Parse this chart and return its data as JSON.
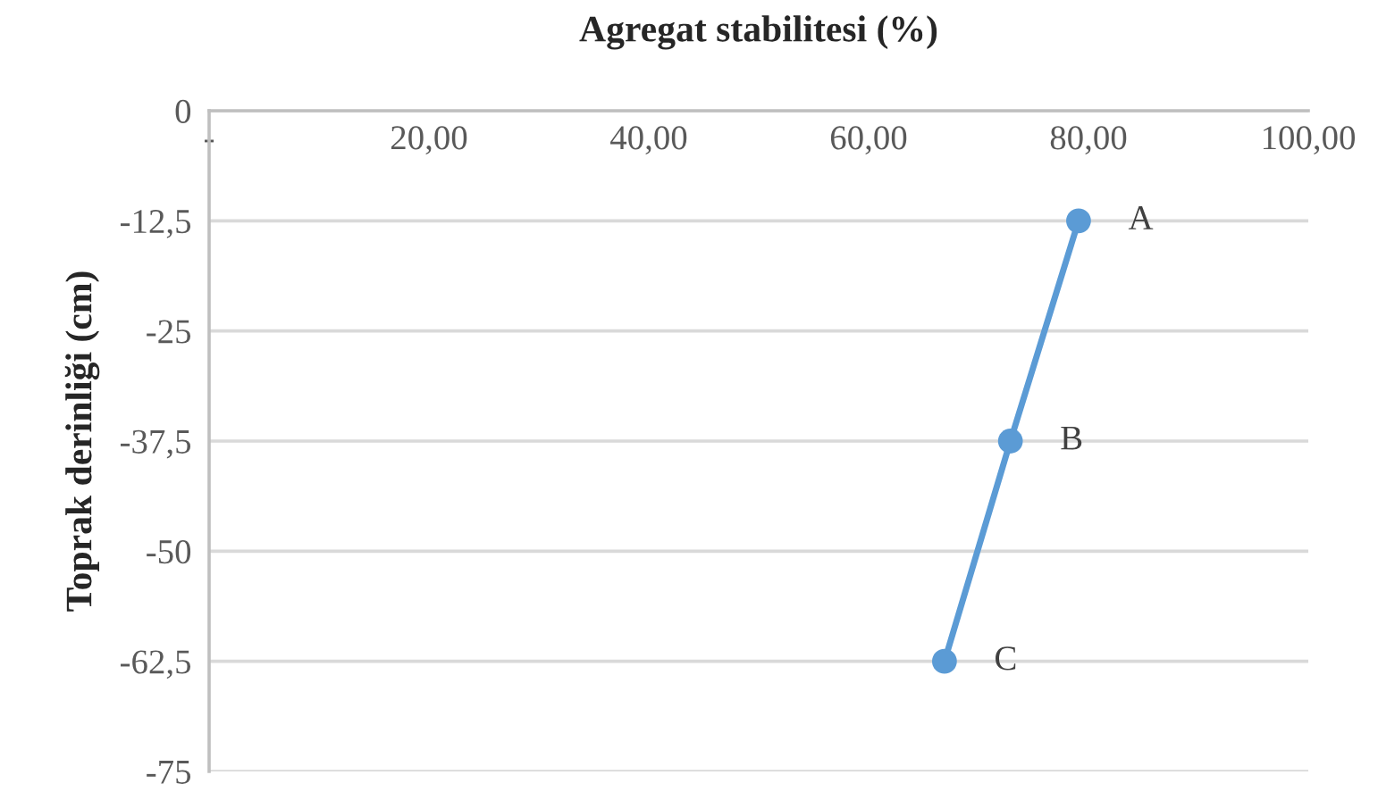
{
  "chart_data": {
    "type": "line",
    "title": "Agregat stabilitesi (%)",
    "ylabel": "Toprak derinliği (cm)",
    "series": [
      {
        "color": "#5b9bd5",
        "x": [
          79.1,
          72.9,
          66.9
        ],
        "values": [
          -12.5,
          -37.5,
          -62.5
        ]
      }
    ],
    "annotations": [
      {
        "text": "A",
        "x": 79.1,
        "y": -12.5
      },
      {
        "text": "B",
        "x": 72.9,
        "y": -37.5
      },
      {
        "text": "C",
        "x": 66.9,
        "y": -62.5
      }
    ],
    "xlim": [
      0,
      100
    ],
    "xticks": [
      {
        "value": 0,
        "label": "-"
      },
      {
        "value": 20,
        "label": "20,00"
      },
      {
        "value": 40,
        "label": "40,00"
      },
      {
        "value": 60,
        "label": "60,00"
      },
      {
        "value": 80,
        "label": "80,00"
      },
      {
        "value": 100,
        "label": "100,00"
      }
    ],
    "ylim": [
      -75,
      0
    ],
    "yticks": [
      0,
      {
        "value": -12.5,
        "label": "-12,5"
      },
      -25,
      {
        "value": -37.5,
        "label": "-37,5"
      },
      -50,
      {
        "value": -62.5,
        "label": "-62,5"
      },
      -75
    ],
    "grid": "y",
    "marker": "circle",
    "line_style": "solid"
  }
}
